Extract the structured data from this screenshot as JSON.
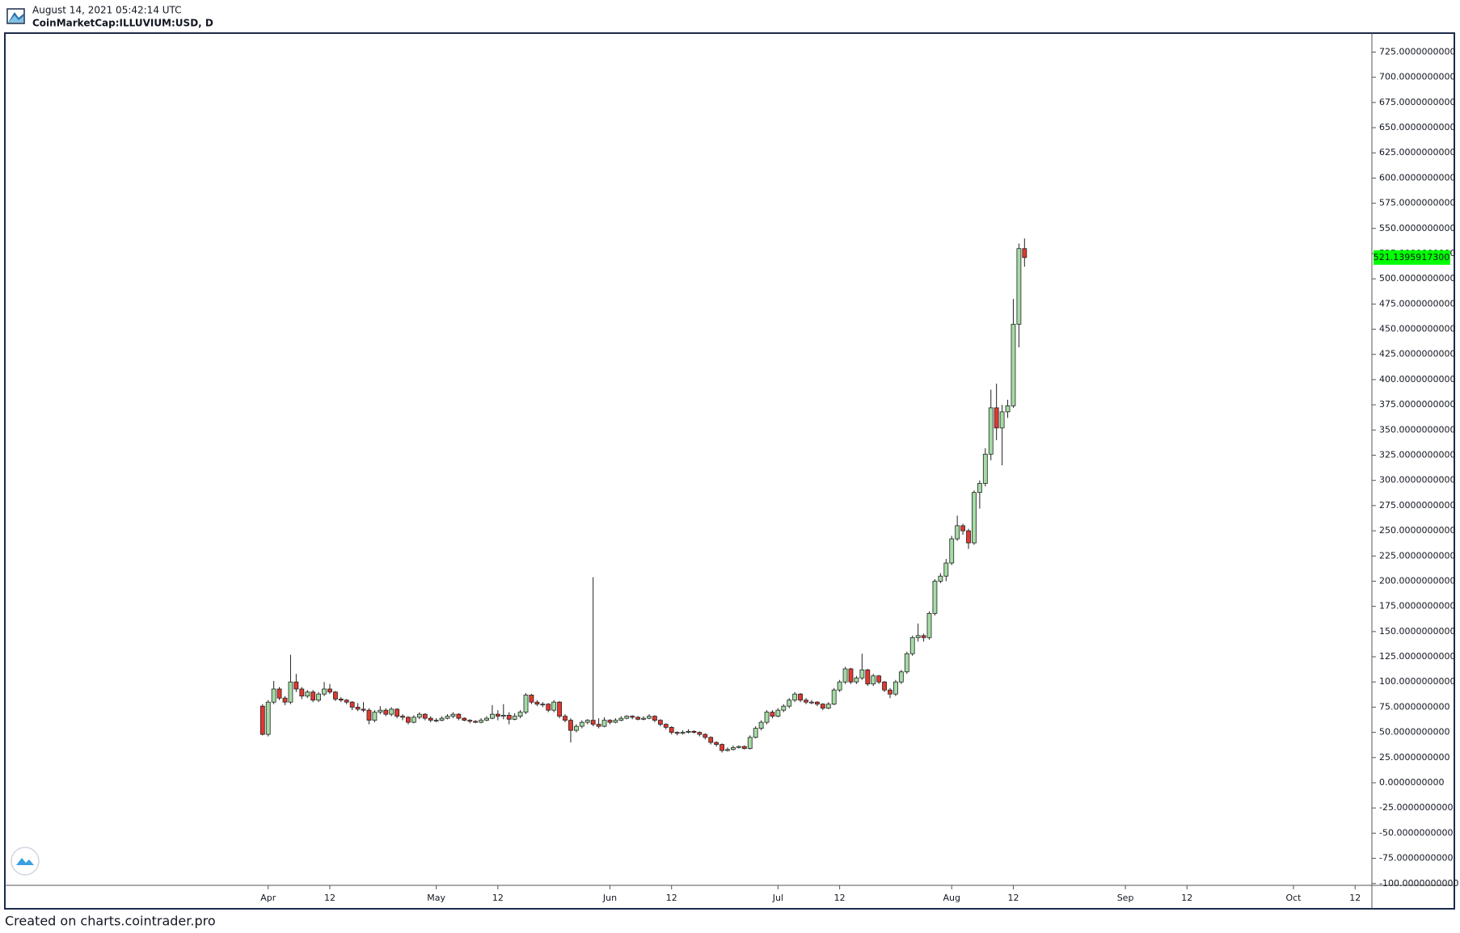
{
  "chart_data": {
    "type": "candlestick",
    "title": "August 14, 2021 05:42:14 UTC",
    "subtitle": "CoinMarketCap:ILLUVIUM:USD, D",
    "footer": "Created on charts.cointrader.pro",
    "up_color": "#a5dca5",
    "down_color": "#e0392f",
    "outline_color": "#222222",
    "x": [
      "03-31",
      "04-01",
      "04-02",
      "04-03",
      "04-04",
      "04-05",
      "04-06",
      "04-07",
      "04-08",
      "04-09",
      "04-10",
      "04-11",
      "04-12",
      "04-13",
      "04-14",
      "04-15",
      "04-16",
      "04-17",
      "04-18",
      "04-19",
      "04-20",
      "04-21",
      "04-22",
      "04-23",
      "04-24",
      "04-25",
      "04-26",
      "04-27",
      "04-28",
      "04-29",
      "04-30",
      "05-01",
      "05-02",
      "05-03",
      "05-04",
      "05-05",
      "05-06",
      "05-07",
      "05-08",
      "05-09",
      "05-10",
      "05-11",
      "05-12",
      "05-13",
      "05-14",
      "05-15",
      "05-16",
      "05-17",
      "05-18",
      "05-19",
      "05-20",
      "05-21",
      "05-22",
      "05-23",
      "05-24",
      "05-25",
      "05-26",
      "05-27",
      "05-28",
      "05-29",
      "05-30",
      "05-31",
      "06-01",
      "06-02",
      "06-03",
      "06-04",
      "06-05",
      "06-06",
      "06-07",
      "06-08",
      "06-09",
      "06-10",
      "06-11",
      "06-12",
      "06-13",
      "06-14",
      "06-15",
      "06-16",
      "06-17",
      "06-18",
      "06-19",
      "06-20",
      "06-21",
      "06-22",
      "06-23",
      "06-24",
      "06-25",
      "06-26",
      "06-27",
      "06-28",
      "06-29",
      "06-30",
      "07-01",
      "07-02",
      "07-03",
      "07-04",
      "07-05",
      "07-06",
      "07-07",
      "07-08",
      "07-09",
      "07-10",
      "07-11",
      "07-12",
      "07-13",
      "07-14",
      "07-15",
      "07-16",
      "07-17",
      "07-18",
      "07-19",
      "07-20",
      "07-21",
      "07-22",
      "07-23",
      "07-24",
      "07-25",
      "07-26",
      "07-27",
      "07-28",
      "07-29",
      "07-30",
      "07-31",
      "08-01",
      "08-02",
      "08-03",
      "08-04",
      "08-05",
      "08-06",
      "08-07",
      "08-08",
      "08-09",
      "08-10",
      "08-11",
      "08-12",
      "08-13",
      "08-14"
    ],
    "ohlc": [
      [
        76,
        78,
        47,
        48
      ],
      [
        48,
        82,
        46,
        80
      ],
      [
        80,
        101,
        78,
        93
      ],
      [
        93,
        95,
        82,
        84
      ],
      [
        84,
        86,
        77,
        80
      ],
      [
        80,
        127,
        78,
        100
      ],
      [
        100,
        108,
        90,
        93
      ],
      [
        93,
        95,
        83,
        86
      ],
      [
        86,
        92,
        84,
        90
      ],
      [
        90,
        92,
        80,
        82
      ],
      [
        82,
        90,
        80,
        88
      ],
      [
        88,
        100,
        86,
        93
      ],
      [
        93,
        98,
        88,
        90
      ],
      [
        90,
        91,
        81,
        83
      ],
      [
        83,
        85,
        80,
        82
      ],
      [
        82,
        83,
        78,
        80
      ],
      [
        80,
        81,
        72,
        75
      ],
      [
        75,
        79,
        71,
        73
      ],
      [
        73,
        80,
        70,
        72
      ],
      [
        72,
        74,
        58,
        62
      ],
      [
        62,
        72,
        60,
        70
      ],
      [
        70,
        76,
        68,
        72
      ],
      [
        72,
        74,
        66,
        68
      ],
      [
        68,
        75,
        66,
        73
      ],
      [
        73,
        74,
        64,
        66
      ],
      [
        66,
        68,
        62,
        65
      ],
      [
        65,
        66,
        58,
        60
      ],
      [
        60,
        67,
        59,
        65
      ],
      [
        65,
        70,
        63,
        68
      ],
      [
        68,
        69,
        62,
        64
      ],
      [
        64,
        66,
        60,
        62
      ],
      [
        62,
        64,
        60,
        62
      ],
      [
        62,
        66,
        61,
        64
      ],
      [
        64,
        68,
        63,
        66
      ],
      [
        66,
        70,
        64,
        68
      ],
      [
        68,
        69,
        62,
        64
      ],
      [
        64,
        65,
        61,
        62
      ],
      [
        62,
        63,
        59,
        61
      ],
      [
        61,
        62,
        59,
        60
      ],
      [
        60,
        64,
        59,
        62
      ],
      [
        62,
        66,
        61,
        64
      ],
      [
        64,
        77,
        63,
        68
      ],
      [
        68,
        72,
        62,
        66
      ],
      [
        66,
        78,
        63,
        67
      ],
      [
        67,
        70,
        58,
        63
      ],
      [
        63,
        69,
        62,
        66
      ],
      [
        66,
        72,
        64,
        70
      ],
      [
        70,
        89,
        68,
        87
      ],
      [
        87,
        88,
        78,
        80
      ],
      [
        80,
        82,
        76,
        78
      ],
      [
        78,
        80,
        75,
        78
      ],
      [
        78,
        79,
        70,
        72
      ],
      [
        72,
        82,
        70,
        80
      ],
      [
        80,
        81,
        64,
        66
      ],
      [
        66,
        68,
        60,
        62
      ],
      [
        62,
        64,
        40,
        52
      ],
      [
        52,
        58,
        50,
        56
      ],
      [
        56,
        62,
        54,
        60
      ],
      [
        60,
        63,
        58,
        62
      ],
      [
        62,
        204,
        56,
        58
      ],
      [
        58,
        64,
        54,
        56
      ],
      [
        56,
        65,
        55,
        62
      ],
      [
        62,
        63,
        58,
        60
      ],
      [
        60,
        64,
        59,
        62
      ],
      [
        62,
        66,
        61,
        64
      ],
      [
        64,
        67,
        63,
        66
      ],
      [
        66,
        67,
        63,
        65
      ],
      [
        65,
        66,
        62,
        63
      ],
      [
        63,
        66,
        62,
        64
      ],
      [
        64,
        68,
        63,
        66
      ],
      [
        66,
        67,
        60,
        62
      ],
      [
        62,
        63,
        56,
        58
      ],
      [
        58,
        59,
        53,
        55
      ],
      [
        55,
        56,
        48,
        50
      ],
      [
        50,
        51,
        47,
        49
      ],
      [
        49,
        52,
        48,
        50
      ],
      [
        50,
        53,
        49,
        51
      ],
      [
        51,
        52,
        49,
        50
      ],
      [
        50,
        51,
        46,
        48
      ],
      [
        48,
        49,
        43,
        45
      ],
      [
        45,
        46,
        38,
        40
      ],
      [
        40,
        41,
        36,
        38
      ],
      [
        38,
        39,
        30,
        32
      ],
      [
        32,
        35,
        31,
        33
      ],
      [
        33,
        37,
        32,
        35
      ],
      [
        35,
        37,
        34,
        36
      ],
      [
        36,
        37,
        33,
        34
      ],
      [
        34,
        47,
        33,
        45
      ],
      [
        45,
        56,
        44,
        54
      ],
      [
        54,
        62,
        52,
        60
      ],
      [
        60,
        72,
        58,
        70
      ],
      [
        70,
        72,
        64,
        66
      ],
      [
        66,
        74,
        65,
        72
      ],
      [
        72,
        78,
        70,
        76
      ],
      [
        76,
        84,
        74,
        82
      ],
      [
        82,
        90,
        80,
        88
      ],
      [
        88,
        89,
        80,
        82
      ],
      [
        82,
        84,
        78,
        80
      ],
      [
        80,
        82,
        78,
        80
      ],
      [
        80,
        81,
        76,
        78
      ],
      [
        78,
        79,
        72,
        74
      ],
      [
        74,
        80,
        73,
        78
      ],
      [
        78,
        94,
        77,
        92
      ],
      [
        92,
        102,
        90,
        100
      ],
      [
        100,
        115,
        98,
        113
      ],
      [
        113,
        114,
        98,
        100
      ],
      [
        100,
        106,
        98,
        104
      ],
      [
        104,
        128,
        102,
        112
      ],
      [
        112,
        113,
        96,
        98
      ],
      [
        98,
        108,
        96,
        106
      ],
      [
        106,
        107,
        98,
        100
      ],
      [
        100,
        101,
        90,
        92
      ],
      [
        92,
        94,
        84,
        88
      ],
      [
        88,
        102,
        86,
        100
      ],
      [
        100,
        112,
        98,
        110
      ],
      [
        110,
        130,
        108,
        128
      ],
      [
        128,
        146,
        126,
        144
      ],
      [
        144,
        158,
        140,
        146
      ],
      [
        146,
        148,
        140,
        144
      ],
      [
        144,
        170,
        142,
        168
      ],
      [
        168,
        202,
        166,
        200
      ],
      [
        200,
        208,
        198,
        205
      ],
      [
        205,
        222,
        200,
        218
      ],
      [
        218,
        245,
        216,
        242
      ],
      [
        242,
        265,
        240,
        255
      ],
      [
        255,
        257,
        246,
        250
      ],
      [
        250,
        252,
        232,
        238
      ],
      [
        238,
        290,
        236,
        288
      ],
      [
        288,
        300,
        272,
        297
      ],
      [
        297,
        332,
        294,
        326
      ],
      [
        326,
        390,
        320,
        372
      ],
      [
        372,
        396,
        340,
        352
      ],
      [
        352,
        375,
        315,
        368
      ],
      [
        368,
        380,
        362,
        374
      ],
      [
        374,
        480,
        372,
        455
      ],
      [
        455,
        535,
        432,
        530
      ],
      [
        530,
        540,
        512,
        521.13959173
      ]
    ],
    "last_price": {
      "value": 521.13959173,
      "label": "521.1395917300",
      "color": "#00ff00"
    },
    "xlim": [
      "02-13",
      "10-15"
    ],
    "xticks": [
      {
        "value": "04-01",
        "label": "Apr"
      },
      {
        "value": "04-12",
        "label": "12"
      },
      {
        "value": "05-01",
        "label": "May"
      },
      {
        "value": "05-12",
        "label": "12"
      },
      {
        "value": "06-01",
        "label": "Jun"
      },
      {
        "value": "06-12",
        "label": "12"
      },
      {
        "value": "07-01",
        "label": "Jul"
      },
      {
        "value": "07-12",
        "label": "12"
      },
      {
        "value": "08-01",
        "label": "Aug"
      },
      {
        "value": "08-12",
        "label": "12"
      },
      {
        "value": "09-01",
        "label": "Sep"
      },
      {
        "value": "09-12",
        "label": "12"
      },
      {
        "value": "10-01",
        "label": "Oct"
      },
      {
        "value": "10-12",
        "label": "12"
      }
    ],
    "ylim": [
      -101.8,
      743.8
    ],
    "yticks": [
      {
        "value": 725,
        "label": "725.0000000000"
      },
      {
        "value": 700,
        "label": "700.0000000000"
      },
      {
        "value": 675,
        "label": "675.0000000000"
      },
      {
        "value": 650,
        "label": "650.0000000000"
      },
      {
        "value": 625,
        "label": "625.0000000000"
      },
      {
        "value": 600,
        "label": "600.0000000000"
      },
      {
        "value": 575,
        "label": "575.0000000000"
      },
      {
        "value": 550,
        "label": "550.0000000000"
      },
      {
        "value": 525,
        "label": "525.0000000000"
      },
      {
        "value": 500,
        "label": "500.0000000000"
      },
      {
        "value": 475,
        "label": "475.0000000000"
      },
      {
        "value": 450,
        "label": "450.0000000000"
      },
      {
        "value": 425,
        "label": "425.0000000000"
      },
      {
        "value": 400,
        "label": "400.0000000000"
      },
      {
        "value": 375,
        "label": "375.0000000000"
      },
      {
        "value": 350,
        "label": "350.0000000000"
      },
      {
        "value": 325,
        "label": "325.0000000000"
      },
      {
        "value": 300,
        "label": "300.0000000000"
      },
      {
        "value": 275,
        "label": "275.0000000000"
      },
      {
        "value": 250,
        "label": "250.0000000000"
      },
      {
        "value": 225,
        "label": "225.0000000000"
      },
      {
        "value": 200,
        "label": "200.0000000000"
      },
      {
        "value": 175,
        "label": "175.0000000000"
      },
      {
        "value": 150,
        "label": "150.0000000000"
      },
      {
        "value": 125,
        "label": "125.0000000000"
      },
      {
        "value": 100,
        "label": "100.0000000000"
      },
      {
        "value": 75,
        "label": "75.0000000000"
      },
      {
        "value": 50,
        "label": "50.0000000000"
      },
      {
        "value": 25,
        "label": "25.0000000000"
      },
      {
        "value": 0,
        "label": "0.0000000000"
      },
      {
        "value": -25,
        "label": "-25.0000000000"
      },
      {
        "value": -50,
        "label": "-50.0000000000"
      },
      {
        "value": -75,
        "label": "-75.0000000000"
      },
      {
        "value": -100,
        "label": "-100.0000000000"
      }
    ]
  }
}
